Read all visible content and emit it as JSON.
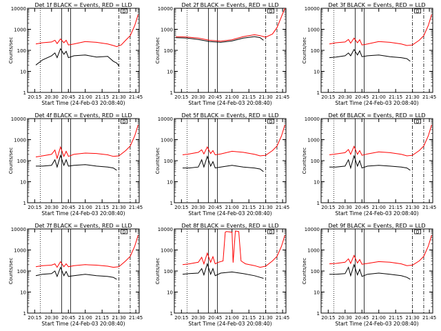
{
  "shared": {
    "ylabel": "Counts/sec",
    "xlabel": "Start Time (24-Feb-03 20:08:40)",
    "x_ticks": [
      "20:15",
      "20:30",
      "20:45",
      "21:00",
      "21:15",
      "21:30",
      "21:45"
    ],
    "y_ticks": [
      "1",
      "10",
      "100",
      "1000",
      "10000"
    ],
    "legend_box": "D",
    "colors": {
      "events": "#000000",
      "lld": "#ff0000"
    }
  },
  "chart_data": [
    {
      "type": "line",
      "title": "Det 1f BLACK = Events, RED = LLD",
      "log_y": true,
      "ylim": [
        1,
        10000
      ],
      "x_range": [
        "20:08:40",
        "21:48"
      ],
      "series": [
        {
          "name": "Events",
          "color": "#000000",
          "x": [
            "20:16",
            "20:22",
            "20:30",
            "20:33",
            "20:35",
            "20:38",
            "20:41",
            "20:43",
            "20:45",
            "20:50",
            "21:00",
            "21:10",
            "21:20",
            "21:25",
            "21:28",
            "21:30"
          ],
          "values": [
            20,
            35,
            55,
            75,
            45,
            120,
            65,
            90,
            45,
            55,
            60,
            48,
            52,
            30,
            25,
            18
          ]
        },
        {
          "name": "LLD",
          "color": "#ff0000",
          "x": [
            "20:16",
            "20:22",
            "20:30",
            "20:33",
            "20:35",
            "20:38",
            "20:41",
            "20:43",
            "20:45",
            "20:50",
            "21:00",
            "21:10",
            "21:20",
            "21:25",
            "21:28",
            "21:32",
            "21:36",
            "21:40",
            "21:44",
            "21:47"
          ],
          "values": [
            200,
            230,
            250,
            300,
            210,
            350,
            230,
            300,
            180,
            200,
            260,
            240,
            200,
            170,
            150,
            180,
            300,
            500,
            1500,
            5000
          ]
        }
      ]
    },
    {
      "type": "line",
      "title": "Det 2f BLACK = Events, RED = LLD",
      "log_y": true,
      "ylim": [
        1,
        10000
      ],
      "x_range": [
        "20:08:40",
        "21:48"
      ],
      "series": [
        {
          "name": "Events",
          "color": "#000000",
          "x": [
            "20:10",
            "20:20",
            "20:30",
            "20:40",
            "20:50",
            "21:00",
            "21:10",
            "21:20",
            "21:25",
            "21:28"
          ],
          "values": [
            400,
            380,
            330,
            260,
            240,
            280,
            380,
            450,
            400,
            300
          ]
        },
        {
          "name": "LLD",
          "color": "#ff0000",
          "x": [
            "20:10",
            "20:20",
            "20:30",
            "20:40",
            "20:50",
            "21:00",
            "21:10",
            "21:20",
            "21:25",
            "21:30",
            "21:36",
            "21:40",
            "21:44",
            "21:47"
          ],
          "values": [
            450,
            430,
            380,
            300,
            270,
            320,
            450,
            550,
            500,
            420,
            600,
            1200,
            4000,
            10000
          ]
        }
      ]
    },
    {
      "type": "line",
      "title": "Det 3f BLACK = Events, RED = LLD",
      "log_y": true,
      "ylim": [
        1,
        10000
      ],
      "x_range": [
        "20:08:40",
        "21:48"
      ],
      "series": [
        {
          "name": "Events",
          "color": "#000000",
          "x": [
            "20:16",
            "20:22",
            "20:30",
            "20:33",
            "20:35",
            "20:38",
            "20:41",
            "20:43",
            "20:45",
            "20:50",
            "21:00",
            "21:10",
            "21:20",
            "21:25",
            "21:28"
          ],
          "values": [
            45,
            48,
            55,
            75,
            55,
            110,
            60,
            95,
            50,
            55,
            60,
            50,
            45,
            40,
            30
          ]
        },
        {
          "name": "LLD",
          "color": "#ff0000",
          "x": [
            "20:16",
            "20:22",
            "20:30",
            "20:33",
            "20:35",
            "20:38",
            "20:41",
            "20:43",
            "20:45",
            "20:50",
            "21:00",
            "21:10",
            "21:20",
            "21:25",
            "21:30",
            "21:36",
            "21:40",
            "21:44",
            "21:47"
          ],
          "values": [
            200,
            230,
            250,
            330,
            220,
            380,
            230,
            320,
            180,
            200,
            260,
            240,
            200,
            170,
            180,
            300,
            500,
            1500,
            5000
          ]
        }
      ]
    },
    {
      "type": "line",
      "title": "Det 4f BLACK = Events, RED = LLD",
      "log_y": true,
      "ylim": [
        1,
        10000
      ],
      "x_range": [
        "20:08:40",
        "21:48"
      ],
      "series": [
        {
          "name": "Events",
          "color": "#000000",
          "x": [
            "20:16",
            "20:22",
            "20:30",
            "20:33",
            "20:35",
            "20:38",
            "20:41",
            "20:43",
            "20:45",
            "20:50",
            "21:00",
            "21:10",
            "21:20",
            "21:25",
            "21:28"
          ],
          "values": [
            55,
            55,
            60,
            110,
            50,
            180,
            60,
            110,
            55,
            60,
            65,
            55,
            50,
            45,
            35
          ]
        },
        {
          "name": "LLD",
          "color": "#ff0000",
          "x": [
            "20:16",
            "20:22",
            "20:30",
            "20:33",
            "20:35",
            "20:38",
            "20:41",
            "20:43",
            "20:45",
            "20:50",
            "21:00",
            "21:10",
            "21:20",
            "21:25",
            "21:30",
            "21:36",
            "21:40",
            "21:44",
            "21:47"
          ],
          "values": [
            150,
            170,
            200,
            320,
            130,
            450,
            160,
            280,
            160,
            200,
            230,
            220,
            190,
            160,
            170,
            300,
            500,
            1500,
            5000
          ]
        }
      ]
    },
    {
      "type": "line",
      "title": "Det 5f BLACK = Events, RED = LLD",
      "log_y": true,
      "ylim": [
        1,
        10000
      ],
      "x_range": [
        "20:08:40",
        "21:48"
      ],
      "series": [
        {
          "name": "Events",
          "color": "#000000",
          "x": [
            "20:16",
            "20:22",
            "20:30",
            "20:33",
            "20:35",
            "20:38",
            "20:41",
            "20:43",
            "20:45",
            "20:50",
            "21:00",
            "21:10",
            "21:20",
            "21:25",
            "21:28"
          ],
          "values": [
            45,
            45,
            50,
            110,
            50,
            160,
            55,
            90,
            45,
            50,
            60,
            50,
            45,
            40,
            30
          ]
        },
        {
          "name": "LLD",
          "color": "#ff0000",
          "x": [
            "20:16",
            "20:22",
            "20:30",
            "20:33",
            "20:35",
            "20:38",
            "20:41",
            "20:43",
            "20:45",
            "20:50",
            "21:00",
            "21:10",
            "21:20",
            "21:25",
            "21:30",
            "21:36",
            "21:40",
            "21:44",
            "21:47"
          ],
          "values": [
            190,
            210,
            250,
            330,
            210,
            450,
            220,
            300,
            190,
            210,
            280,
            250,
            200,
            170,
            180,
            300,
            500,
            1500,
            5000
          ]
        }
      ]
    },
    {
      "type": "line",
      "title": "Det 6f BLACK = Events, RED = LLD",
      "log_y": true,
      "ylim": [
        1,
        10000
      ],
      "x_range": [
        "20:08:40",
        "21:48"
      ],
      "series": [
        {
          "name": "Events",
          "color": "#000000",
          "x": [
            "20:16",
            "20:22",
            "20:30",
            "20:33",
            "20:35",
            "20:38",
            "20:41",
            "20:43",
            "20:45",
            "20:50",
            "21:00",
            "21:10",
            "21:20",
            "21:25",
            "21:28"
          ],
          "values": [
            50,
            50,
            55,
            110,
            45,
            170,
            55,
            100,
            45,
            55,
            60,
            55,
            50,
            45,
            35
          ]
        },
        {
          "name": "LLD",
          "color": "#ff0000",
          "x": [
            "20:16",
            "20:22",
            "20:30",
            "20:33",
            "20:35",
            "20:38",
            "20:41",
            "20:43",
            "20:45",
            "20:50",
            "21:00",
            "21:10",
            "21:20",
            "21:25",
            "21:30",
            "21:36",
            "21:40",
            "21:44",
            "21:47"
          ],
          "values": [
            190,
            210,
            240,
            340,
            200,
            480,
            200,
            300,
            180,
            210,
            260,
            240,
            200,
            170,
            180,
            300,
            500,
            1500,
            5000
          ]
        }
      ]
    },
    {
      "type": "line",
      "title": "Det 7f BLACK = Events, RED = LLD",
      "log_y": true,
      "ylim": [
        1,
        10000
      ],
      "x_range": [
        "20:08:40",
        "21:48"
      ],
      "series": [
        {
          "name": "Events",
          "color": "#000000",
          "x": [
            "20:16",
            "20:22",
            "20:30",
            "20:33",
            "20:35",
            "20:38",
            "20:41",
            "20:43",
            "20:45",
            "20:50",
            "21:00",
            "21:10",
            "21:20",
            "21:25",
            "21:28"
          ],
          "values": [
            60,
            70,
            75,
            100,
            55,
            150,
            60,
            95,
            55,
            60,
            70,
            60,
            55,
            50,
            40
          ]
        },
        {
          "name": "LLD",
          "color": "#ff0000",
          "x": [
            "20:16",
            "20:22",
            "20:30",
            "20:33",
            "20:35",
            "20:38",
            "20:41",
            "20:43",
            "20:45",
            "20:50",
            "21:00",
            "21:10",
            "21:20",
            "21:25",
            "21:30",
            "21:36",
            "21:40",
            "21:44",
            "21:47"
          ],
          "values": [
            160,
            180,
            190,
            220,
            150,
            280,
            160,
            220,
            160,
            180,
            200,
            190,
            170,
            150,
            160,
            300,
            500,
            1500,
            5000
          ]
        }
      ]
    },
    {
      "type": "line",
      "title": "Det 8f BLACK = Events, RED = LLD",
      "log_y": true,
      "ylim": [
        1,
        10000
      ],
      "x_range": [
        "20:08:40",
        "21:48"
      ],
      "series": [
        {
          "name": "Events",
          "color": "#000000",
          "x": [
            "20:16",
            "20:22",
            "20:30",
            "20:33",
            "20:35",
            "20:38",
            "20:41",
            "20:43",
            "20:45",
            "20:50",
            "21:00",
            "21:10",
            "21:20",
            "21:25",
            "21:28"
          ],
          "values": [
            70,
            75,
            80,
            130,
            65,
            220,
            70,
            130,
            60,
            80,
            90,
            75,
            60,
            50,
            45
          ]
        },
        {
          "name": "LLD",
          "color": "#ff0000",
          "x": [
            "20:16",
            "20:22",
            "20:30",
            "20:33",
            "20:35",
            "20:38",
            "20:41",
            "20:43",
            "20:45",
            "20:48",
            "20:52",
            "20:54",
            "20:55",
            "21:00",
            "21:01",
            "21:03",
            "21:06",
            "21:08",
            "21:12",
            "21:20",
            "21:25",
            "21:30",
            "21:36",
            "21:40",
            "21:44",
            "21:47"
          ],
          "values": [
            200,
            220,
            260,
            450,
            220,
            700,
            260,
            480,
            220,
            260,
            300,
            7000,
            7500,
            7000,
            250,
            8000,
            7500,
            300,
            220,
            180,
            150,
            170,
            300,
            500,
            1500,
            5000
          ]
        }
      ]
    },
    {
      "type": "line",
      "title": "Det 9f BLACK = Events, RED = LLD",
      "log_y": true,
      "ylim": [
        1,
        10000
      ],
      "x_range": [
        "20:08:40",
        "21:48"
      ],
      "series": [
        {
          "name": "Events",
          "color": "#000000",
          "x": [
            "20:16",
            "20:22",
            "20:30",
            "20:33",
            "20:35",
            "20:38",
            "20:41",
            "20:43",
            "20:45",
            "20:50",
            "21:00",
            "21:10",
            "21:20",
            "21:25",
            "21:28"
          ],
          "values": [
            70,
            70,
            75,
            150,
            60,
            200,
            65,
            120,
            55,
            70,
            80,
            70,
            60,
            50,
            40
          ]
        },
        {
          "name": "LLD",
          "color": "#ff0000",
          "x": [
            "20:16",
            "20:22",
            "20:30",
            "20:33",
            "20:35",
            "20:38",
            "20:41",
            "20:43",
            "20:45",
            "20:50",
            "21:00",
            "21:10",
            "21:20",
            "21:25",
            "21:30",
            "21:36",
            "21:40",
            "21:44",
            "21:47"
          ],
          "values": [
            220,
            230,
            260,
            380,
            230,
            550,
            240,
            350,
            210,
            230,
            280,
            260,
            220,
            180,
            190,
            300,
            500,
            1500,
            5000
          ]
        }
      ]
    }
  ]
}
